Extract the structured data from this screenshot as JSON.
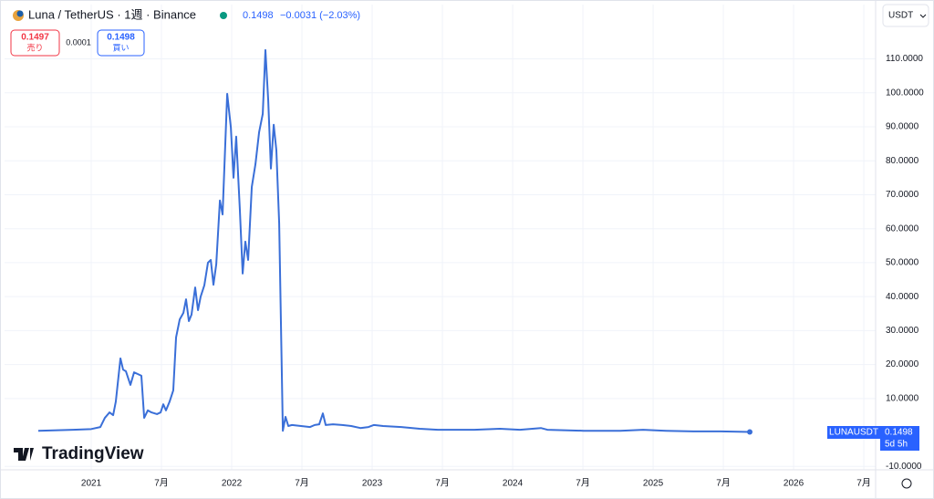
{
  "header": {
    "symbol": "Luna / TetherUS · 1週 · Binance",
    "last": "0.1498",
    "change": "−0.0031 (−2.03%)",
    "currency": "USDT"
  },
  "trade": {
    "sell_price": "0.1497",
    "sell_label": "売り",
    "spread": "0.0001",
    "buy_price": "0.1498",
    "buy_label": "買い"
  },
  "price_tag": {
    "symbol": "LUNAUSDT",
    "price": "0.1498",
    "countdown": "5d 5h"
  },
  "logo": "TradingView",
  "chart_data": {
    "type": "line",
    "color": "#3a6fd8",
    "grid": true,
    "x": [
      2020.623,
      2020.87,
      2021.0,
      2021.065,
      2021.097,
      2021.13,
      2021.156,
      2021.175,
      2021.208,
      2021.227,
      2021.247,
      2021.279,
      2021.305,
      2021.331,
      2021.357,
      2021.377,
      2021.403,
      2021.429,
      2021.468,
      2021.494,
      2021.513,
      2021.532,
      2021.558,
      2021.584,
      2021.604,
      2021.63,
      2021.656,
      2021.675,
      2021.695,
      2021.714,
      2021.74,
      2021.76,
      2021.779,
      2021.805,
      2021.831,
      2021.851,
      2021.87,
      2021.89,
      2021.916,
      2021.935,
      2021.968,
      2021.994,
      2022.013,
      2022.032,
      2022.058,
      2022.078,
      2022.097,
      2022.117,
      2022.143,
      2022.169,
      2022.195,
      2022.221,
      2022.24,
      2022.26,
      2022.279,
      2022.299,
      2022.318,
      2022.338,
      2022.364,
      2022.383,
      2022.403,
      2022.429,
      2022.494,
      2022.558,
      2022.591,
      2022.623,
      2022.649,
      2022.669,
      2022.721,
      2022.786,
      2022.851,
      2022.916,
      2022.974,
      2023.013,
      2023.078,
      2023.208,
      2023.338,
      2023.468,
      2023.597,
      2023.727,
      2023.909,
      2024.052,
      2024.201,
      2024.247,
      2024.506,
      2024.766,
      2024.929,
      2025.091,
      2025.286,
      2025.481,
      2025.688
    ],
    "values": [
      0.5,
      0.8,
      1.0,
      1.6,
      4.3,
      5.9,
      5.1,
      9.1,
      21.8,
      18.5,
      18,
      14,
      17.7,
      17.2,
      16.7,
      4.3,
      6.5,
      5.9,
      5.4,
      5.9,
      8.3,
      6.5,
      9.1,
      12.4,
      28,
      33.3,
      35.2,
      39.2,
      32.8,
      34.7,
      42.7,
      36,
      40,
      43.3,
      50,
      50.8,
      43.5,
      49.5,
      68.3,
      64.2,
      99.7,
      89.8,
      75,
      87.1,
      65.6,
      46.8,
      56.2,
      50.8,
      72.3,
      79,
      88.4,
      93.8,
      112.6,
      97.8,
      77.7,
      90.6,
      83.1,
      61.6,
      0.5,
      4.6,
      1.9,
      2.2,
      1.9,
      1.6,
      2.2,
      2.4,
      5.6,
      2.2,
      2.4,
      2.2,
      1.9,
      1.3,
      1.6,
      2.2,
      1.9,
      1.6,
      1.1,
      0.8,
      0.8,
      0.8,
      1.1,
      0.8,
      1.3,
      0.8,
      0.5,
      0.5,
      0.8,
      0.5,
      0.3,
      0.3,
      0.1498
    ],
    "xlim": [
      2020.383,
      2026.584
    ],
    "ylim": [
      -11,
      126
    ],
    "xticks": [
      {
        "value": 2021,
        "label": "2021"
      },
      {
        "value": 2021.5,
        "label": "7月"
      },
      {
        "value": 2022,
        "label": "2022"
      },
      {
        "value": 2022.5,
        "label": "7月"
      },
      {
        "value": 2023,
        "label": "2023"
      },
      {
        "value": 2023.5,
        "label": "7月"
      },
      {
        "value": 2024,
        "label": "2024"
      },
      {
        "value": 2024.5,
        "label": "7月"
      },
      {
        "value": 2025,
        "label": "2025"
      },
      {
        "value": 2025.5,
        "label": "7月"
      },
      {
        "value": 2026,
        "label": "2026"
      },
      {
        "value": 2026.5,
        "label": "7月"
      }
    ],
    "yticks": [
      {
        "value": 110,
        "label": "110.0000"
      },
      {
        "value": 100,
        "label": "100.0000"
      },
      {
        "value": 90,
        "label": "90.0000"
      },
      {
        "value": 80,
        "label": "80.0000"
      },
      {
        "value": 70,
        "label": "70.0000"
      },
      {
        "value": 60,
        "label": "60.0000"
      },
      {
        "value": 50,
        "label": "50.0000"
      },
      {
        "value": 40,
        "label": "40.0000"
      },
      {
        "value": 30,
        "label": "30.0000"
      },
      {
        "value": 20,
        "label": "20.0000"
      },
      {
        "value": 10,
        "label": "10.0000"
      },
      {
        "value": -10,
        "label": "-10.0000"
      }
    ]
  }
}
